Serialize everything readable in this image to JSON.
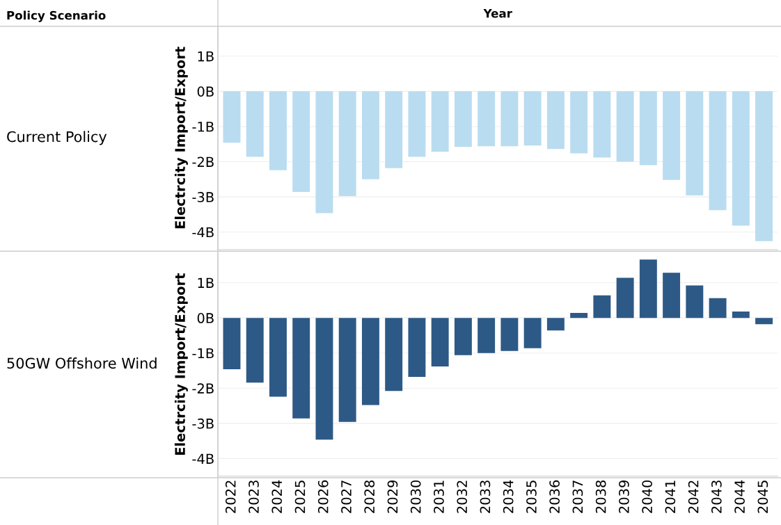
{
  "chart_data": [
    {
      "type": "bar",
      "title": "Current Policy",
      "xlabel": "Year",
      "ylabel": "Electrcity Import/Export",
      "annotations": [
        "Policy Scenario"
      ],
      "categories": [
        "2022",
        "2023",
        "2024",
        "2025",
        "2026",
        "2027",
        "2028",
        "2029",
        "2030",
        "2031",
        "2032",
        "2033",
        "2034",
        "2035",
        "2036",
        "2037",
        "2038",
        "2039",
        "2040",
        "2041",
        "2042",
        "2043",
        "2044",
        "2045"
      ],
      "values": [
        -1.46,
        -1.86,
        -2.24,
        -2.86,
        -3.46,
        -2.98,
        -2.5,
        -2.18,
        -1.86,
        -1.72,
        -1.58,
        -1.56,
        -1.56,
        -1.54,
        -1.64,
        -1.76,
        -1.88,
        -2.0,
        -2.1,
        -2.52,
        -2.96,
        -3.38,
        -3.82,
        -4.26
      ],
      "color": "#b9dcf0",
      "ylim": [
        -4.5,
        1.85
      ],
      "yticks": [
        {
          "value": -4,
          "label": "-4B"
        },
        {
          "value": -3,
          "label": "-3B"
        },
        {
          "value": -2,
          "label": "-2B"
        },
        {
          "value": -1,
          "label": "-1B"
        },
        {
          "value": 0,
          "label": "0B"
        },
        {
          "value": 1,
          "label": "1B"
        }
      ],
      "grid": "y",
      "tick_labels": "y"
    },
    {
      "type": "bar",
      "title": "50GW Offshore Wind",
      "ylabel": "Electrcity Import/Export",
      "categories": [
        "2022",
        "2023",
        "2024",
        "2025",
        "2026",
        "2027",
        "2028",
        "2029",
        "2030",
        "2031",
        "2032",
        "2033",
        "2034",
        "2035",
        "2036",
        "2037",
        "2038",
        "2039",
        "2040",
        "2041",
        "2042",
        "2043",
        "2044",
        "2045"
      ],
      "values": [
        -1.46,
        -1.84,
        -2.24,
        -2.86,
        -3.46,
        -2.96,
        -2.48,
        -2.08,
        -1.68,
        -1.38,
        -1.06,
        -1.0,
        -0.94,
        -0.86,
        -0.36,
        0.14,
        0.64,
        1.14,
        1.66,
        1.28,
        0.92,
        0.56,
        0.18,
        -0.18
      ],
      "color": "#2d5986",
      "ylim": [
        -4.5,
        1.85
      ],
      "yticks": [
        {
          "value": -4,
          "label": "-4B"
        },
        {
          "value": -3,
          "label": "-3B"
        },
        {
          "value": -2,
          "label": "-2B"
        },
        {
          "value": -1,
          "label": "-1B"
        },
        {
          "value": 0,
          "label": "0B"
        },
        {
          "value": 1,
          "label": "1B"
        }
      ],
      "grid": "y"
    }
  ]
}
